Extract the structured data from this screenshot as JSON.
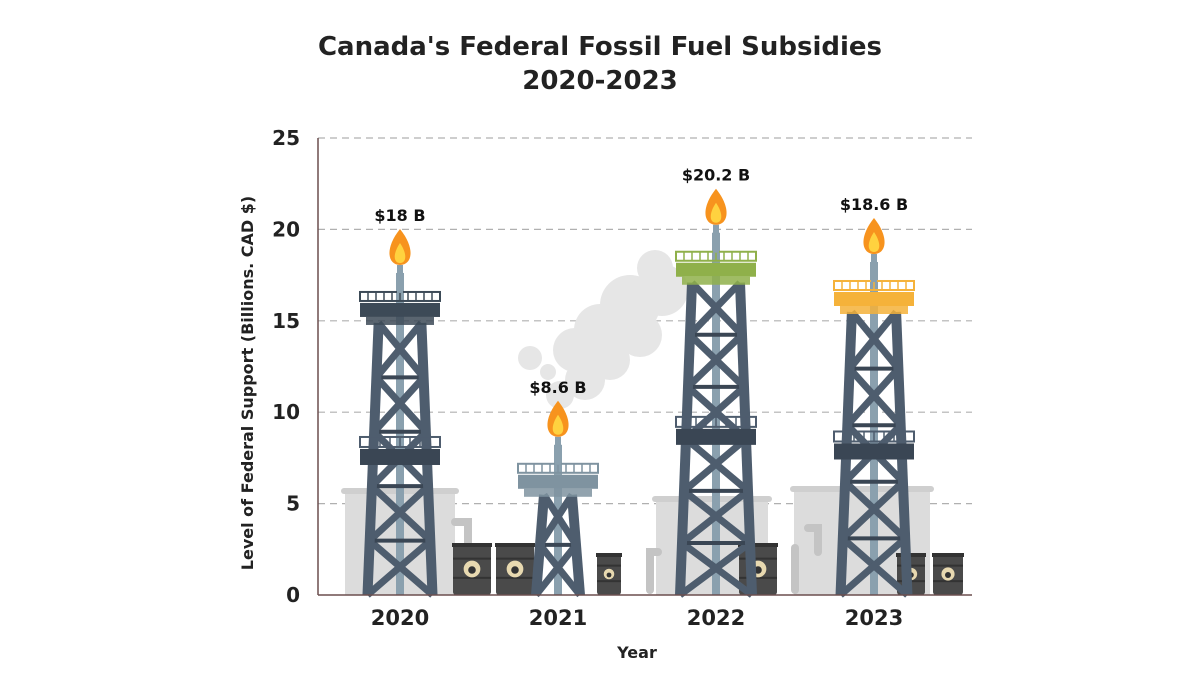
{
  "chart_data": {
    "type": "bar",
    "title_line1": "Canada's Federal Fossil Fuel Subsidies",
    "title_line2": "2020-2023",
    "xlabel": "Year",
    "ylabel": "Level of Federal Support (Billions. CAD $)",
    "ylim": [
      0,
      25
    ],
    "yticks": [
      "0",
      "5",
      "10",
      "15",
      "20",
      "25"
    ],
    "grid": true,
    "categories": [
      "2020",
      "2021",
      "2022",
      "2023"
    ],
    "values": [
      18,
      8.6,
      20.2,
      18.6
    ],
    "data_labels": [
      "$18 B",
      "$8.6 B",
      "$20.2 B",
      "$18.6 B"
    ],
    "platform_colors": [
      "#3d4a57",
      "#7f93a0",
      "#8fb04a",
      "#f5b23a"
    ],
    "colors": {
      "tower": "#4e5d6e",
      "tower_dark": "#3a4654",
      "grid": "#b0b0b0",
      "tank": "#dcdcdc",
      "barrel": "#4a4a4a",
      "flame_outer": "#f7931e",
      "flame_inner": "#ffd23f"
    }
  }
}
